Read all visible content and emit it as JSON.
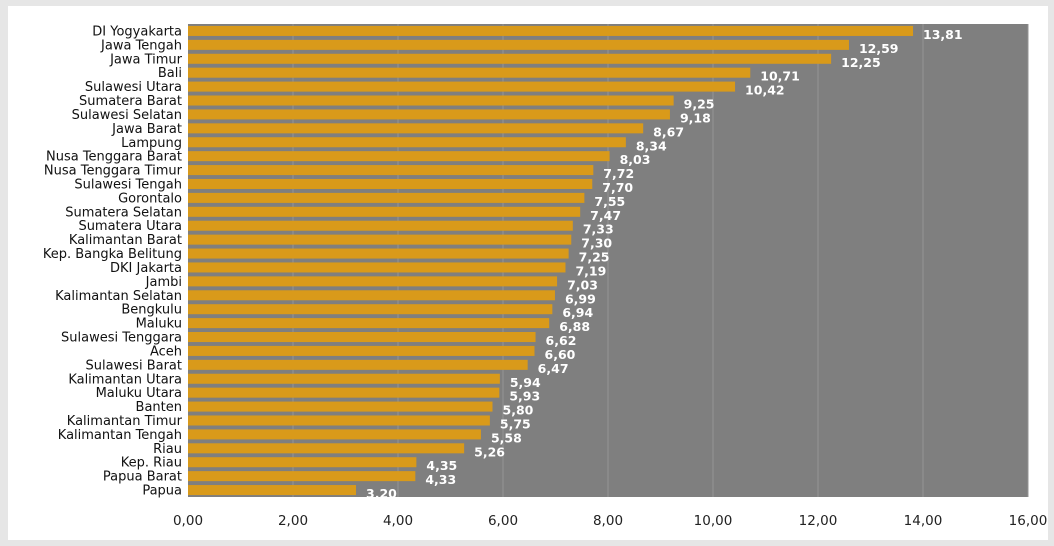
{
  "chart_data": {
    "type": "bar",
    "orientation": "horizontal",
    "title": "",
    "xlabel": "",
    "ylabel": "",
    "xlim": [
      0,
      16
    ],
    "xticks": [
      "0,00",
      "2,00",
      "4,00",
      "6,00",
      "8,00",
      "10,00",
      "12,00",
      "14,00",
      "16,00"
    ],
    "grid": "vertical",
    "colors": {
      "bar": "#d99a1a",
      "plot_background": "#7f7f7f",
      "page_background": "#e6e6e6",
      "value_label": "#ffffff"
    },
    "categories": [
      "DI Yogyakarta",
      "Jawa Tengah",
      "Jawa Timur",
      "Bali",
      "Sulawesi Utara",
      "Sumatera Barat",
      "Sulawesi Selatan",
      "Jawa Barat",
      "Lampung",
      "Nusa Tenggara Barat",
      "Nusa Tenggara Timur",
      "Sulawesi Tengah",
      "Gorontalo",
      "Sumatera Selatan",
      "Sumatera Utara",
      "Kalimantan Barat",
      "Kep. Bangka Belitung",
      "DKI Jakarta",
      "Jambi",
      "Kalimantan Selatan",
      "Bengkulu",
      "Maluku",
      "Sulawesi Tenggara",
      "Aceh",
      "Sulawesi Barat",
      "Kalimantan Utara",
      "Maluku Utara",
      "Banten",
      "Kalimantan Timur",
      "Kalimantan Tengah",
      "Riau",
      "Kep. Riau",
      "Papua Barat",
      "Papua"
    ],
    "values": [
      13.81,
      12.59,
      12.25,
      10.71,
      10.42,
      9.25,
      9.18,
      8.67,
      8.34,
      8.03,
      7.72,
      7.7,
      7.55,
      7.47,
      7.33,
      7.3,
      7.25,
      7.19,
      7.03,
      6.99,
      6.94,
      6.88,
      6.62,
      6.6,
      6.47,
      5.94,
      5.93,
      5.8,
      5.75,
      5.58,
      5.26,
      4.35,
      4.33,
      3.2
    ],
    "value_labels": [
      "13,81",
      "12,59",
      "12,25",
      "10,71",
      "10,42",
      "9,25",
      "9,18",
      "8,67",
      "8,34",
      "8,03",
      "7,72",
      "7,70",
      "7,55",
      "7,47",
      "7,33",
      "7,30",
      "7,25",
      "7,19",
      "7,03",
      "6,99",
      "6,94",
      "6,88",
      "6,62",
      "6,60",
      "6,47",
      "5,94",
      "5,93",
      "5,80",
      "5,75",
      "5,58",
      "5,26",
      "4,35",
      "4,33",
      "3,20"
    ]
  }
}
